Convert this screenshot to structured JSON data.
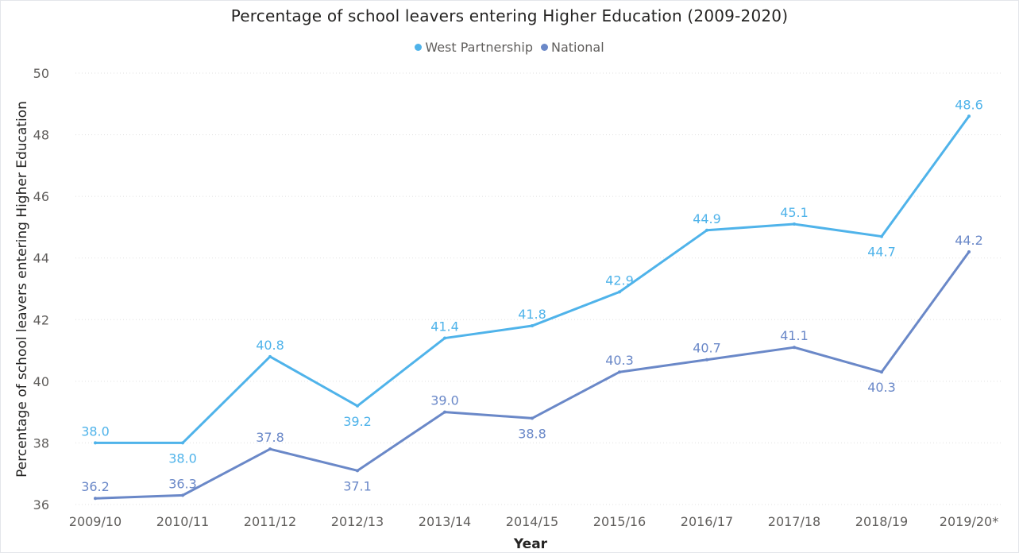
{
  "chart_data": {
    "type": "line",
    "title": "Percentage of school leavers entering Higher Education (2009-2020)",
    "xlabel": "Year",
    "ylabel": "Percentage of school leavers entering Higher Education",
    "categories": [
      "2009/10",
      "2010/11",
      "2011/12",
      "2012/13",
      "2013/14",
      "2014/15",
      "2015/16",
      "2016/17",
      "2017/18",
      "2018/19",
      "2019/20*"
    ],
    "ylim": [
      36,
      50
    ],
    "yticks": [
      "36",
      "38",
      "40",
      "42",
      "44",
      "46",
      "48",
      "50"
    ],
    "grid": true,
    "legend_position": "top-center",
    "series": [
      {
        "name": "West Partnership",
        "color": "#4fb3ea",
        "values": [
          38.0,
          38.0,
          40.8,
          39.2,
          41.4,
          41.8,
          42.9,
          44.9,
          45.1,
          44.7,
          48.6
        ],
        "labels": [
          "38.0",
          "38.0",
          "40.8",
          "39.2",
          "41.4",
          "41.8",
          "42.9",
          "44.9",
          "45.1",
          "44.7",
          "48.6"
        ]
      },
      {
        "name": "National",
        "color": "#6a88c8",
        "values": [
          36.2,
          36.3,
          37.8,
          37.1,
          39.0,
          38.8,
          40.3,
          40.7,
          41.1,
          40.3,
          44.2
        ],
        "labels": [
          "36.2",
          "36.3",
          "37.8",
          "37.1",
          "39.0",
          "38.8",
          "40.3",
          "40.7",
          "41.1",
          "40.3",
          "44.2"
        ]
      }
    ]
  }
}
